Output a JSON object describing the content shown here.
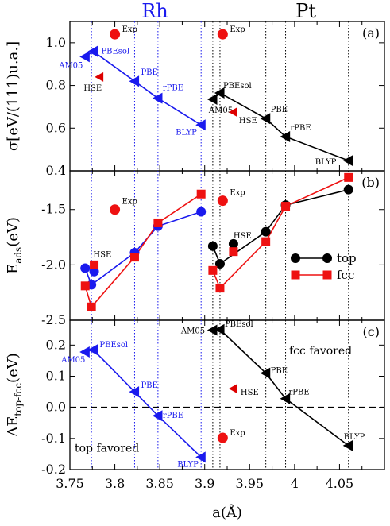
{
  "colors": {
    "rh": "#1a1aee",
    "pt": "#000000",
    "exp": "#ee1111",
    "hse": "#dd0000",
    "top": "#000000",
    "fcc": "#ee1111",
    "rh_fcc": "#ee1111"
  },
  "header": {
    "rh_label": "Rh",
    "pt_label": "Pt"
  },
  "xaxis": {
    "label": "a(Å)",
    "ticks": [
      "3.75",
      "3.8",
      "3.85",
      "3.9",
      "3.95",
      "4",
      "4.05"
    ]
  },
  "chart_data": [
    {
      "type": "scatter",
      "panel_label": "(a)",
      "ylabel": "σ[eV/(111)u.a.]",
      "xlim": [
        3.75,
        4.1
      ],
      "ylim": [
        0.4,
        1.1
      ],
      "yticks": [
        "0.4",
        "0.6",
        "0.8",
        "1.0"
      ],
      "rh_series": {
        "points": [
          {
            "x": 3.767,
            "y": 0.935,
            "label": "AM05"
          },
          {
            "x": 3.776,
            "y": 0.96,
            "label": "PBEsol"
          },
          {
            "x": 3.822,
            "y": 0.82,
            "label": "PBE"
          },
          {
            "x": 3.848,
            "y": 0.74,
            "label": "rPBE"
          },
          {
            "x": 3.896,
            "y": 0.615,
            "label": "BLYP"
          }
        ]
      },
      "pt_series": {
        "points": [
          {
            "x": 3.909,
            "y": 0.735,
            "label": "AM05"
          },
          {
            "x": 3.917,
            "y": 0.765,
            "label": "PBEsol"
          },
          {
            "x": 3.968,
            "y": 0.645,
            "label": "PBE"
          },
          {
            "x": 3.99,
            "y": 0.56,
            "label": "rPBE"
          },
          {
            "x": 4.06,
            "y": 0.448,
            "label": "BLYP"
          }
        ]
      },
      "exp": [
        {
          "x": 3.8,
          "y": 1.04,
          "label": "Exp"
        },
        {
          "x": 3.92,
          "y": 1.04,
          "label": "Exp"
        }
      ],
      "hse": [
        {
          "x": 3.783,
          "y": 0.84,
          "label": "HSE"
        },
        {
          "x": 3.932,
          "y": 0.675,
          "label": "HSE"
        }
      ]
    },
    {
      "type": "scatter",
      "panel_label": "(b)",
      "ylabel": "E_ads(eV)",
      "xlim": [
        3.75,
        4.1
      ],
      "ylim": [
        -2.5,
        -1.15
      ],
      "yticks": [
        "-2.5",
        "-2.0",
        "-1.5"
      ],
      "legend": [
        {
          "name": "top"
        },
        {
          "name": "fcc"
        }
      ],
      "rh_top": [
        {
          "x": 3.767,
          "y": -2.03
        },
        {
          "x": 3.774,
          "y": -2.18
        },
        {
          "x": 3.822,
          "y": -1.89
        },
        {
          "x": 3.848,
          "y": -1.65
        },
        {
          "x": 3.896,
          "y": -1.52
        }
      ],
      "rh_fcc": [
        {
          "x": 3.767,
          "y": -2.19
        },
        {
          "x": 3.774,
          "y": -2.38
        },
        {
          "x": 3.822,
          "y": -1.93
        },
        {
          "x": 3.848,
          "y": -1.62
        },
        {
          "x": 3.896,
          "y": -1.36
        }
      ],
      "pt_top": [
        {
          "x": 3.909,
          "y": -1.83
        },
        {
          "x": 3.917,
          "y": -1.99
        },
        {
          "x": 3.968,
          "y": -1.7
        },
        {
          "x": 3.99,
          "y": -1.46
        },
        {
          "x": 4.06,
          "y": -1.32
        }
      ],
      "pt_fcc": [
        {
          "x": 3.909,
          "y": -2.05
        },
        {
          "x": 3.917,
          "y": -2.21
        },
        {
          "x": 3.968,
          "y": -1.79
        },
        {
          "x": 3.99,
          "y": -1.47
        },
        {
          "x": 4.06,
          "y": -1.21
        }
      ],
      "exp": [
        {
          "x": 3.8,
          "y": -1.5,
          "label": "Exp"
        },
        {
          "x": 3.92,
          "y": -1.42,
          "label": "Exp"
        }
      ],
      "hse_labels": [
        {
          "x": 3.776,
          "y": -1.93,
          "label": "HSE"
        },
        {
          "x": 3.932,
          "y": -1.76,
          "label": "HSE"
        }
      ],
      "hse_top": [
        {
          "x": 3.777,
          "y": -2.06
        },
        {
          "x": 3.932,
          "y": -1.81
        }
      ],
      "hse_fcc": [
        {
          "x": 3.777,
          "y": -2.0
        },
        {
          "x": 3.932,
          "y": -1.88
        }
      ]
    },
    {
      "type": "scatter",
      "panel_label": "(c)",
      "ylabel": "ΔE_top-fcc(eV)",
      "xlim": [
        3.75,
        4.1
      ],
      "ylim": [
        -0.2,
        0.28
      ],
      "yticks": [
        "-0.2",
        "-0.1",
        "0.0",
        "0.1",
        "0.2"
      ],
      "reference_line_y": 0.0,
      "annotations": [
        "fcc favored",
        "top favored"
      ],
      "rh_series": {
        "points": [
          {
            "x": 3.767,
            "y": 0.178,
            "label": "AM05"
          },
          {
            "x": 3.776,
            "y": 0.185,
            "label": "PBEsol"
          },
          {
            "x": 3.822,
            "y": 0.05,
            "label": "PBE"
          },
          {
            "x": 3.848,
            "y": -0.027,
            "label": "rPBE"
          },
          {
            "x": 3.896,
            "y": -0.16,
            "label": "BLYP"
          }
        ]
      },
      "pt_series": {
        "points": [
          {
            "x": 3.909,
            "y": 0.248,
            "label": "AM05"
          },
          {
            "x": 3.917,
            "y": 0.25,
            "label": "PBEsol"
          },
          {
            "x": 3.968,
            "y": 0.11,
            "label": "PBE"
          },
          {
            "x": 3.99,
            "y": 0.028,
            "label": "rPBE"
          },
          {
            "x": 4.06,
            "y": -0.123,
            "label": "BLYP"
          }
        ]
      },
      "exp": [
        {
          "x": 3.92,
          "y": -0.098,
          "label": "Exp"
        }
      ],
      "hse": [
        {
          "x": 3.932,
          "y": 0.06,
          "label": "HSE"
        }
      ]
    }
  ],
  "lattice_lines": {
    "rh_x": [
      3.774,
      3.822,
      3.848,
      3.896
    ],
    "pt_x": [
      3.909,
      3.917,
      3.968,
      3.99,
      4.06
    ]
  }
}
